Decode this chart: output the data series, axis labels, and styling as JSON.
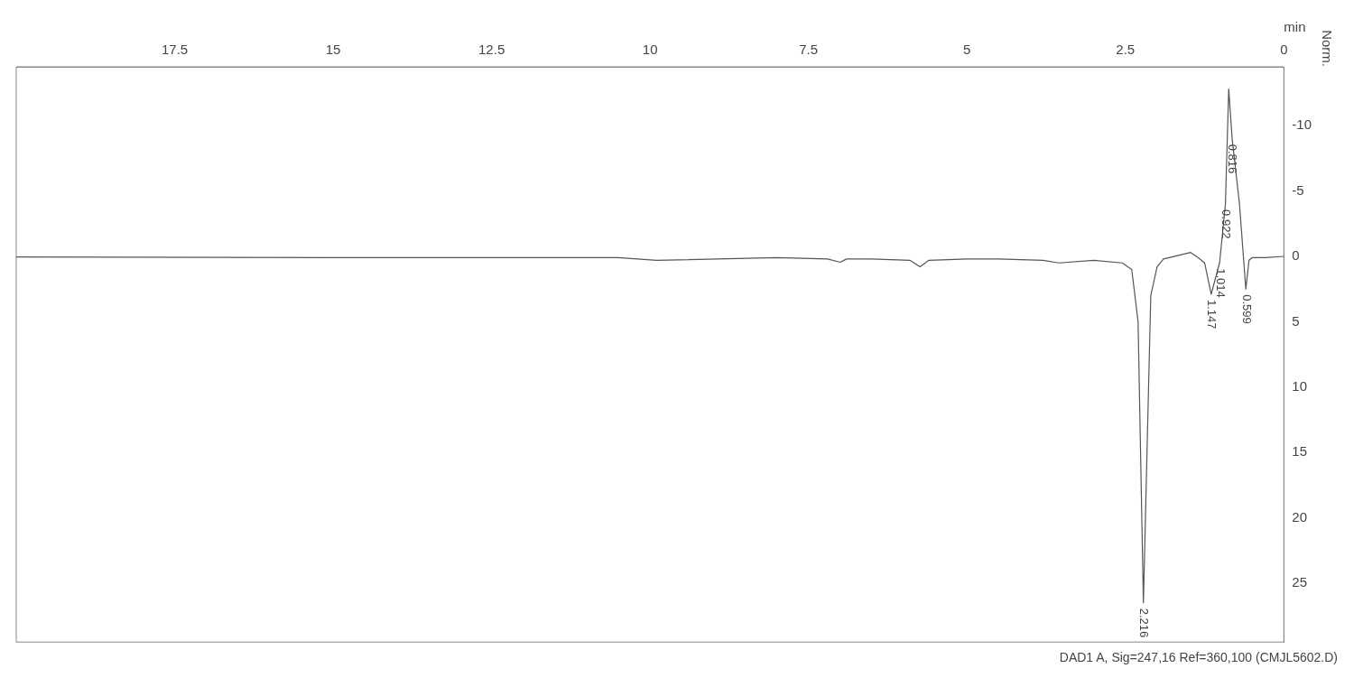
{
  "chart_data": {
    "type": "line",
    "title": "DAD1 A, Sig=247,16 Ref=360,100 (CMJL5602.D)",
    "xlabel": "min",
    "ylabel": "Norm.",
    "x": [
      0,
      0.3,
      0.5,
      0.55,
      0.6,
      0.7,
      0.816,
      0.87,
      0.922,
      1.014,
      1.147,
      1.25,
      1.35,
      1.47,
      1.9,
      2.0,
      2.1,
      2.216,
      2.3,
      2.4,
      2.55,
      3.0,
      3.55,
      3.8,
      4.5,
      5.0,
      5.6,
      5.74,
      5.9,
      6.5,
      6.9,
      7.0,
      7.2,
      8.0,
      9.9,
      10.5,
      12.0,
      15.0,
      20.0
    ],
    "series": [
      {
        "color": "#555555",
        "values": [
          0,
          0.1,
          0.1,
          0.3,
          2.5,
          -4,
          -9,
          -12.8,
          -4,
          0.5,
          2.9,
          0.5,
          0.1,
          -0.3,
          0.2,
          0.8,
          3,
          26.5,
          5,
          1,
          0.5,
          0.3,
          0.5,
          0.3,
          0.2,
          0.2,
          0.3,
          0.8,
          0.3,
          0.2,
          0.2,
          0.45,
          0.2,
          0.1,
          0.3,
          0.1,
          0.1,
          0.1,
          0.05
        ]
      }
    ],
    "annotations": [
      {
        "text": "0.599",
        "x": 0.599,
        "y": 2.5
      },
      {
        "text": "0.816",
        "x": 0.816,
        "y": -9
      },
      {
        "text": "0.922",
        "x": 0.922,
        "y": -4
      },
      {
        "text": "1.014",
        "x": 1.014,
        "y": 0.5
      },
      {
        "text": "1.147",
        "x": 1.147,
        "y": 2.9
      },
      {
        "text": "2.216",
        "x": 2.216,
        "y": 26.5
      }
    ],
    "xlim": [
      20,
      0
    ],
    "xticks": [
      0,
      2.5,
      5,
      7.5,
      10,
      12.5,
      15,
      17.5
    ],
    "ylim": [
      29.5,
      -14.5
    ],
    "yticks": [
      -10,
      -5,
      0,
      5,
      10,
      15,
      20,
      25
    ],
    "grid": false,
    "legend": false,
    "marker": "none",
    "line_style": "solid"
  }
}
